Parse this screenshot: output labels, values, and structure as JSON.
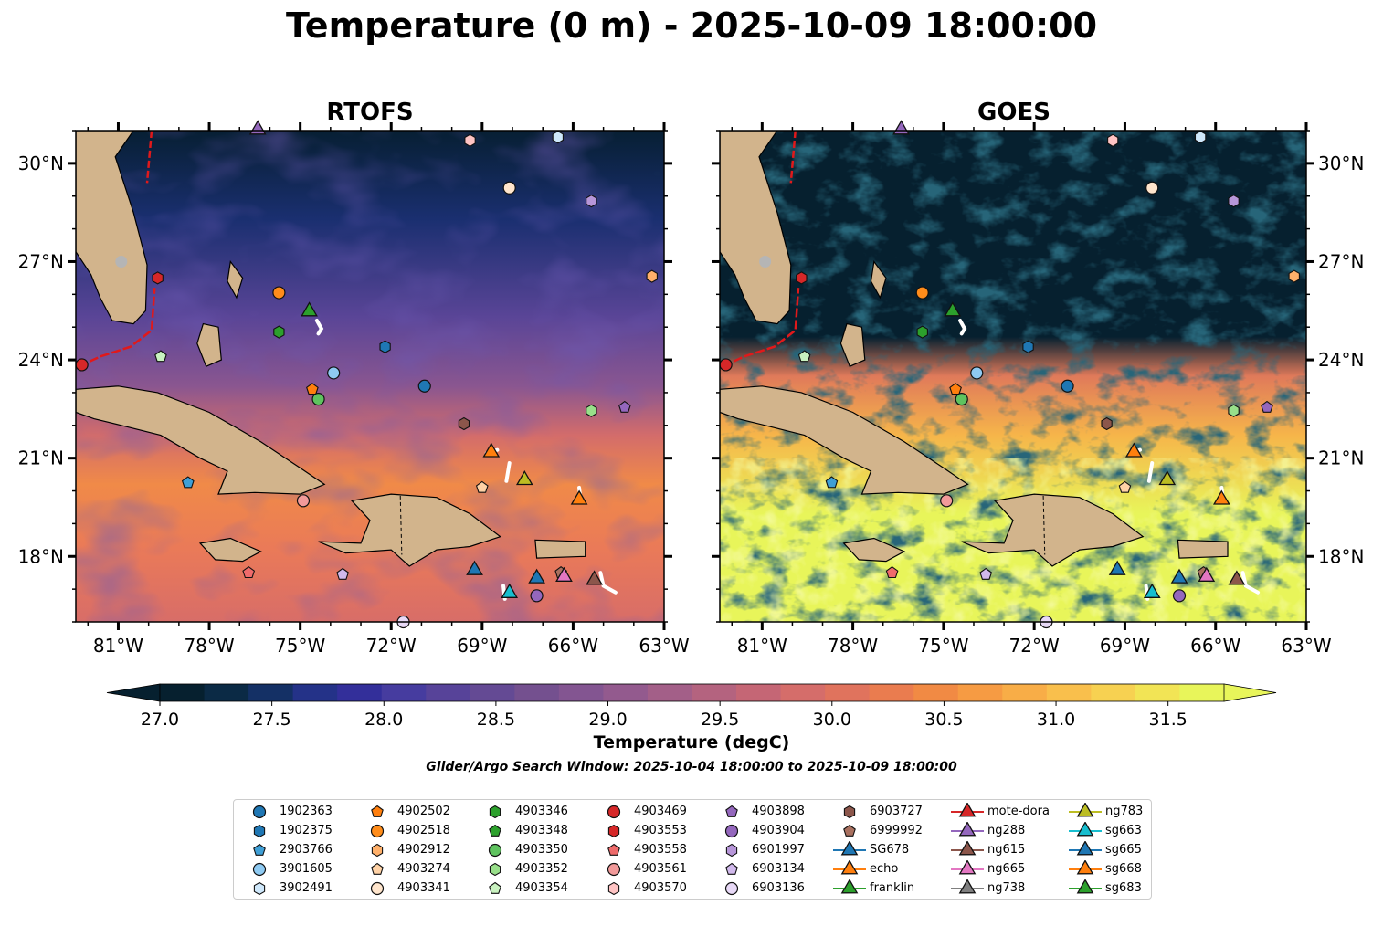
{
  "title": "Temperature (0 m) - 2025-10-09 18:00:00",
  "panels": [
    {
      "title": "RTOFS"
    },
    {
      "title": "GOES"
    }
  ],
  "colorbar": {
    "label": "Temperature (degC)",
    "ticks": [
      "27.0",
      "27.5",
      "28.0",
      "28.5",
      "29.0",
      "29.5",
      "30.0",
      "30.5",
      "31.0",
      "31.5"
    ],
    "min": 27.0,
    "max": 31.75,
    "extend": "both",
    "colors": [
      "#06202f",
      "#0b2a45",
      "#143065",
      "#243288",
      "#332f9a",
      "#463c9f",
      "#574399",
      "#644a94",
      "#74508f",
      "#835591",
      "#935a8e",
      "#a35f88",
      "#b4637f",
      "#c56675",
      "#d56d6a",
      "#e0735d",
      "#ea7c4f",
      "#f18a44",
      "#f69b43",
      "#f8ad47",
      "#f9bf4c",
      "#f7d151",
      "#f2e455",
      "#e8f55a"
    ]
  },
  "search_window": "Glider/Argo Search Window: 2025-10-04 18:00:00 to 2025-10-09 18:00:00",
  "chart_data": {
    "type": "scatter",
    "title": "Temperature (0 m) - 2025-10-09 18:00:00",
    "xlim": [
      -82.4,
      -63.0
    ],
    "ylim": [
      16.0,
      31.0
    ],
    "x_ticks": [
      "81°W",
      "78°W",
      "75°W",
      "72°W",
      "69°W",
      "66°W",
      "63°W"
    ],
    "y_ticks": [
      "30°N",
      "27°N",
      "24°N",
      "21°N",
      "18°N"
    ],
    "x_tick_values": [
      -81,
      -78,
      -75,
      -72,
      -69,
      -66,
      -63
    ],
    "y_tick_values": [
      30,
      27,
      24,
      21,
      18
    ],
    "legend_position": "bottom-center",
    "series": [
      {
        "name": "1902363",
        "marker": "circle",
        "color": "#1f77b4",
        "x": [
          -70.9
        ],
        "y": [
          23.2
        ]
      },
      {
        "name": "1902375",
        "marker": "hexagon",
        "color": "#1f77b4",
        "x": [
          -72.2
        ],
        "y": [
          24.4
        ]
      },
      {
        "name": "2903766",
        "marker": "pentagon",
        "color": "#3f9fd6",
        "x": [
          -78.7
        ],
        "y": [
          20.25
        ]
      },
      {
        "name": "3901605",
        "marker": "circle",
        "color": "#8ecaf2",
        "x": [
          -73.9
        ],
        "y": [
          23.6
        ]
      },
      {
        "name": "3902491",
        "marker": "hexagon",
        "color": "#cfe8fb",
        "x": [
          -66.5
        ],
        "y": [
          30.8
        ]
      },
      {
        "name": "4902502",
        "marker": "pentagon",
        "color": "#ff7f0e",
        "x": [
          -74.6
        ],
        "y": [
          23.1
        ]
      },
      {
        "name": "4902518",
        "marker": "circle",
        "color": "#ff8c1a",
        "x": [
          -75.7
        ],
        "y": [
          26.05
        ]
      },
      {
        "name": "4902912",
        "marker": "hexagon",
        "color": "#ffb06a",
        "x": [
          -63.4
        ],
        "y": [
          26.55
        ]
      },
      {
        "name": "4903274",
        "marker": "pentagon",
        "color": "#ffd2a6",
        "x": [
          -69.0
        ],
        "y": [
          20.1
        ]
      },
      {
        "name": "4903341",
        "marker": "circle",
        "color": "#ffe5cc",
        "x": [
          -68.1
        ],
        "y": [
          29.25
        ]
      },
      {
        "name": "4903346",
        "marker": "hexagon",
        "color": "#2ca02c",
        "x": [
          -75.7
        ],
        "y": [
          24.85
        ]
      },
      {
        "name": "4903348",
        "marker": "pentagon",
        "color": "#2ca02c",
        "x": [
          -74.4
        ],
        "y": [
          22.8
        ]
      },
      {
        "name": "4903350",
        "marker": "circle",
        "color": "#5fc35f",
        "x": [
          -74.4
        ],
        "y": [
          22.8
        ]
      },
      {
        "name": "4903352",
        "marker": "hexagon",
        "color": "#98df8a",
        "x": [
          -65.4
        ],
        "y": [
          22.45
        ]
      },
      {
        "name": "4903354",
        "marker": "pentagon",
        "color": "#c9f2c0",
        "x": [
          -79.6
        ],
        "y": [
          24.1
        ]
      },
      {
        "name": "4903469",
        "marker": "circle",
        "color": "#d62728",
        "x": [
          -82.2
        ],
        "y": [
          23.85
        ]
      },
      {
        "name": "4903553",
        "marker": "hexagon",
        "color": "#d62728",
        "x": [
          -79.7
        ],
        "y": [
          26.5
        ]
      },
      {
        "name": "4903558",
        "marker": "pentagon",
        "color": "#ef6b6b",
        "x": [
          -76.7
        ],
        "y": [
          17.5
        ]
      },
      {
        "name": "4903561",
        "marker": "circle",
        "color": "#f29a9a",
        "x": [
          -74.9
        ],
        "y": [
          19.7
        ]
      },
      {
        "name": "4903570",
        "marker": "hexagon",
        "color": "#ffc4c4",
        "x": [
          -69.4
        ],
        "y": [
          30.7
        ]
      },
      {
        "name": "4903898",
        "marker": "pentagon",
        "color": "#9467bd",
        "x": [
          -64.3
        ],
        "y": [
          22.55
        ]
      },
      {
        "name": "4903904",
        "marker": "circle",
        "color": "#9467bd",
        "x": [
          -67.2
        ],
        "y": [
          16.8
        ]
      },
      {
        "name": "6901997",
        "marker": "hexagon",
        "color": "#b796d9",
        "x": [
          -65.4
        ],
        "y": [
          28.85
        ]
      },
      {
        "name": "6903134",
        "marker": "pentagon",
        "color": "#d1b9ec",
        "x": [
          -73.6
        ],
        "y": [
          17.45
        ]
      },
      {
        "name": "6903136",
        "marker": "circle",
        "color": "#e8d9f7",
        "x": [
          -71.6
        ],
        "y": [
          16.0
        ]
      },
      {
        "name": "6903727",
        "marker": "hexagon",
        "color": "#8c564b",
        "x": [
          -69.6
        ],
        "y": [
          22.05
        ]
      },
      {
        "name": "6999992",
        "marker": "pentagon",
        "color": "#a9705f",
        "x": [
          -66.4
        ],
        "y": [
          17.5
        ]
      },
      {
        "name": "SG678",
        "marker": "triangle",
        "color": "#1f77b4",
        "x": [
          -69.25
        ],
        "y": [
          17.55
        ]
      },
      {
        "name": "echo",
        "marker": "triangle",
        "color": "#ff7f0e",
        "x": [
          -68.7
        ],
        "y": [
          21.15
        ]
      },
      {
        "name": "franklin",
        "marker": "triangle",
        "color": "#2ca02c",
        "x": [
          -74.7
        ],
        "y": [
          25.45
        ]
      },
      {
        "name": "mote-dora",
        "marker": "triangle",
        "color": "#d62728",
        "x": [],
        "y": []
      },
      {
        "name": "ng288",
        "marker": "triangle",
        "color": "#9467bd",
        "x": [
          -76.4
        ],
        "y": [
          31.0
        ]
      },
      {
        "name": "ng615",
        "marker": "triangle",
        "color": "#8c564b",
        "x": [
          -65.3
        ],
        "y": [
          17.25
        ]
      },
      {
        "name": "ng665",
        "marker": "triangle",
        "color": "#e377c2",
        "x": [
          -66.3
        ],
        "y": [
          17.35
        ]
      },
      {
        "name": "ng738",
        "marker": "triangle",
        "color": "#7f7f7f",
        "x": [],
        "y": []
      },
      {
        "name": "ng783",
        "marker": "triangle",
        "color": "#bcbd22",
        "x": [
          -67.6
        ],
        "y": [
          20.3
        ]
      },
      {
        "name": "sg663",
        "marker": "triangle",
        "color": "#17becf",
        "x": [
          -68.1
        ],
        "y": [
          16.85
        ]
      },
      {
        "name": "sg665",
        "marker": "triangle",
        "color": "#1f77b4",
        "x": [
          -67.2
        ],
        "y": [
          17.3
        ]
      },
      {
        "name": "sg668",
        "marker": "triangle",
        "color": "#ff7f0e",
        "x": [
          -65.8
        ],
        "y": [
          19.7
        ]
      },
      {
        "name": "sg683",
        "marker": "triangle",
        "color": "#2ca02c",
        "x": [],
        "y": []
      }
    ]
  }
}
